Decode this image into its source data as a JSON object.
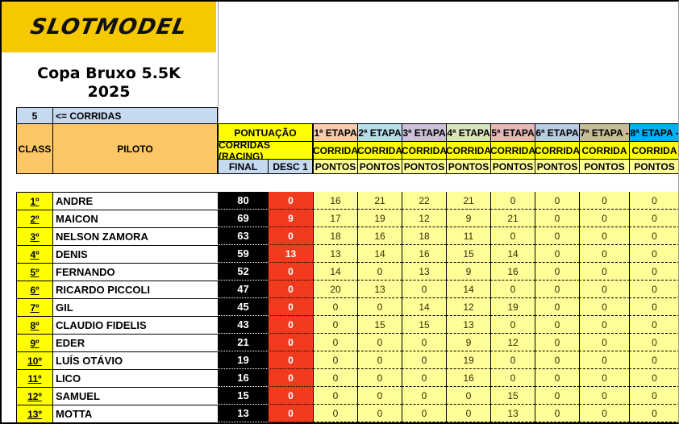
{
  "logo": "SLOTMODEL",
  "title_line1": "Copa Bruxo 5.5K",
  "title_line2": "2025",
  "races_count": "5",
  "races_label": "<= CORRIDAS",
  "headers": {
    "class": "CLASS",
    "pilot": "PILOTO",
    "pontuacao": "PONTUAÇÃO",
    "corridas_racing": "CORRIDAS (RACING)",
    "final": "FINAL",
    "desc": "DESC 1"
  },
  "stages": [
    {
      "label": "1ª ETAPA",
      "sub": "CORRIDA",
      "pts": "PONTOS",
      "color": "#f8cbad"
    },
    {
      "label": "2ª ETAPA",
      "sub": "CORRIDA",
      "pts": "PONTOS",
      "color": "#b7dee8"
    },
    {
      "label": "3ª ETAPA",
      "sub": "CORRIDA",
      "pts": "PONTOS",
      "color": "#ccc0da"
    },
    {
      "label": "4ª ETAPA",
      "sub": "CORRIDA",
      "pts": "PONTOS",
      "color": "#d8e4bc"
    },
    {
      "label": "5ª ETAPA",
      "sub": "CORRIDA",
      "pts": "PONTOS",
      "color": "#e6b8b7"
    },
    {
      "label": "6ª ETAPA",
      "sub": "CORRIDA",
      "pts": "PONTOS",
      "color": "#b8cce4"
    },
    {
      "label": "7ª ETAPA -",
      "sub": "CORRIDA",
      "pts": "PONTOS",
      "color": "#c4bd97"
    },
    {
      "label": "8ª ETAPA -",
      "sub": "CORRIDA",
      "pts": "PONTOS",
      "color": "#00b0f0"
    }
  ],
  "rows": [
    {
      "pos": "1º",
      "name": "ANDRE",
      "final": "80",
      "desc": "0",
      "pts": [
        "16",
        "21",
        "22",
        "21",
        "0",
        "0",
        "0",
        "0"
      ]
    },
    {
      "pos": "2º",
      "name": "MAICON",
      "final": "69",
      "desc": "9",
      "pts": [
        "17",
        "19",
        "12",
        "9",
        "21",
        "0",
        "0",
        "0"
      ]
    },
    {
      "pos": "3º",
      "name": "NELSON ZAMORA",
      "final": "63",
      "desc": "0",
      "pts": [
        "18",
        "16",
        "18",
        "11",
        "0",
        "0",
        "0",
        "0"
      ]
    },
    {
      "pos": "4º",
      "name": "DENIS",
      "final": "59",
      "desc": "13",
      "pts": [
        "13",
        "14",
        "16",
        "15",
        "14",
        "0",
        "0",
        "0"
      ]
    },
    {
      "pos": "5º",
      "name": "FERNANDO",
      "final": "52",
      "desc": "0",
      "pts": [
        "14",
        "0",
        "13",
        "9",
        "16",
        "0",
        "0",
        "0"
      ]
    },
    {
      "pos": "6º",
      "name": "RICARDO PICCOLI",
      "final": "47",
      "desc": "0",
      "pts": [
        "20",
        "13",
        "0",
        "14",
        "0",
        "0",
        "0",
        "0"
      ]
    },
    {
      "pos": "7º",
      "name": "GIL",
      "final": "45",
      "desc": "0",
      "pts": [
        "0",
        "0",
        "14",
        "12",
        "19",
        "0",
        "0",
        "0"
      ]
    },
    {
      "pos": "8º",
      "name": "CLAUDIO FIDELIS",
      "final": "43",
      "desc": "0",
      "pts": [
        "0",
        "15",
        "15",
        "13",
        "0",
        "0",
        "0",
        "0"
      ]
    },
    {
      "pos": "9º",
      "name": "EDER",
      "final": "21",
      "desc": "0",
      "pts": [
        "0",
        "0",
        "0",
        "9",
        "12",
        "0",
        "0",
        "0"
      ]
    },
    {
      "pos": "10º",
      "name": "LUÍS OTÁVIO",
      "final": "19",
      "desc": "0",
      "pts": [
        "0",
        "0",
        "0",
        "19",
        "0",
        "0",
        "0",
        "0"
      ]
    },
    {
      "pos": "11º",
      "name": "LICO",
      "final": "16",
      "desc": "0",
      "pts": [
        "0",
        "0",
        "0",
        "16",
        "0",
        "0",
        "0",
        "0"
      ]
    },
    {
      "pos": "12º",
      "name": "SAMUEL",
      "final": "15",
      "desc": "0",
      "pts": [
        "0",
        "0",
        "0",
        "0",
        "15",
        "0",
        "0",
        "0"
      ]
    },
    {
      "pos": "13º",
      "name": "MOTTA",
      "final": "13",
      "desc": "0",
      "pts": [
        "0",
        "0",
        "0",
        "0",
        "13",
        "0",
        "0",
        "0"
      ]
    }
  ]
}
